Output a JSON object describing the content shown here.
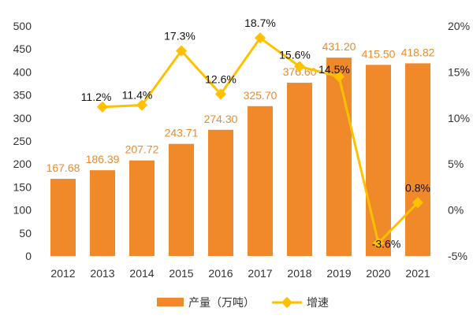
{
  "chart_data": {
    "type": "bar",
    "categories": [
      "2012",
      "2013",
      "2014",
      "2015",
      "2016",
      "2017",
      "2018",
      "2019",
      "2020",
      "2021"
    ],
    "series": [
      {
        "name": "产量（万吨）",
        "type": "bar",
        "axis": "left",
        "values": [
          167.68,
          186.39,
          207.72,
          243.71,
          274.3,
          325.7,
          376.6,
          431.2,
          415.5,
          418.82
        ],
        "labels": [
          "167.68",
          "186.39",
          "207.72",
          "243.71",
          "274.30",
          "325.70",
          "376.60",
          "431.20",
          "415.50",
          "418.82"
        ],
        "color": "#f0892a"
      },
      {
        "name": "增速",
        "type": "line",
        "axis": "right",
        "values": [
          11.2,
          11.4,
          17.3,
          12.6,
          18.7,
          15.6,
          14.5,
          -3.6,
          0.8
        ],
        "x": [
          "2013",
          "2014",
          "2015",
          "2016",
          "2017",
          "2018",
          "2019",
          "2020",
          "2021"
        ],
        "labels": [
          "11.2%",
          "11.4%",
          "17.3%",
          "12.6%",
          "18.7%",
          "15.6%",
          "14.5%",
          "-3.6%",
          "0.8%"
        ],
        "color": "#ffc000"
      }
    ],
    "left_axis": {
      "ylim": [
        0,
        500
      ],
      "ticks": [
        0,
        50,
        100,
        150,
        200,
        250,
        300,
        350,
        400,
        450,
        500
      ],
      "tick_labels": [
        "0",
        "50",
        "100",
        "150",
        "200",
        "250",
        "300",
        "350",
        "400",
        "450",
        "500"
      ]
    },
    "right_axis": {
      "ylim": [
        -5,
        20
      ],
      "ticks": [
        -5,
        0,
        5,
        10,
        15,
        20
      ],
      "tick_labels": [
        "-5%",
        "0%",
        "5%",
        "10%",
        "15%",
        "20%"
      ]
    },
    "grid": false,
    "legend": "bottom",
    "title": "",
    "xlabel": "",
    "ylabel": ""
  }
}
